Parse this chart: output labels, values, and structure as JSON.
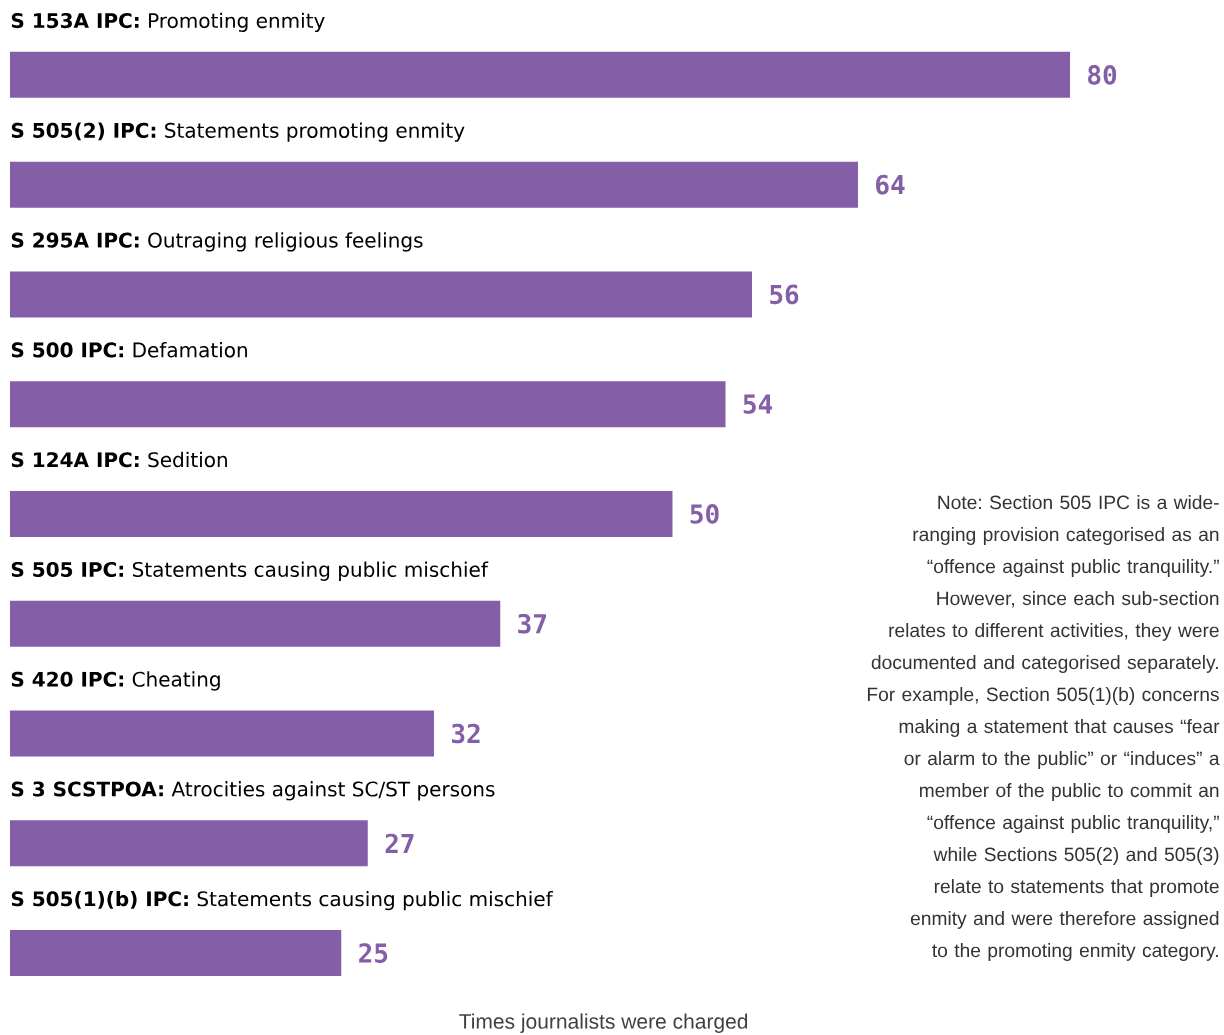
{
  "chart_data": {
    "type": "bar",
    "orientation": "horizontal",
    "categories": [
      "**S 153A IPC:** Promoting enmity",
      "**S 505(2) IPC:** Statements promoting enmity",
      "**S 295A IPC:** Outraging religious feelings",
      "**S 500 IPC:** Defamation",
      "**S 124A IPC:** Sedition",
      "**S 505 IPC:** Statements causing public mischief",
      "**S 420 IPC:** Cheating",
      "**S 3 SCSTPOA:** Atrocities against SC/ST persons",
      "**S 505(1)(b) IPC:** Statements causing public mischief"
    ],
    "values": [
      80,
      64,
      56,
      54,
      50,
      37,
      32,
      27,
      25
    ],
    "color": "#845ea7",
    "data_labels": true,
    "xlabel": "Times journalists were charged",
    "annotations": [
      "Note: Section 505 IPC is a wide-ranging provision categorised as an “offence against public tranquility.” However, since each sub-section relates to different activities, they were documented and categorised separately. For example, Section 505(1)(b) concerns making a statement that causes “fear or alarm to the public” or “induces” a member of the public to commit an “offence against public tranquility,” while Sections 505(2) and 505(3) relate to statements that promote enmity and were therefore assigned to the promoting enmity category."
    ]
  }
}
